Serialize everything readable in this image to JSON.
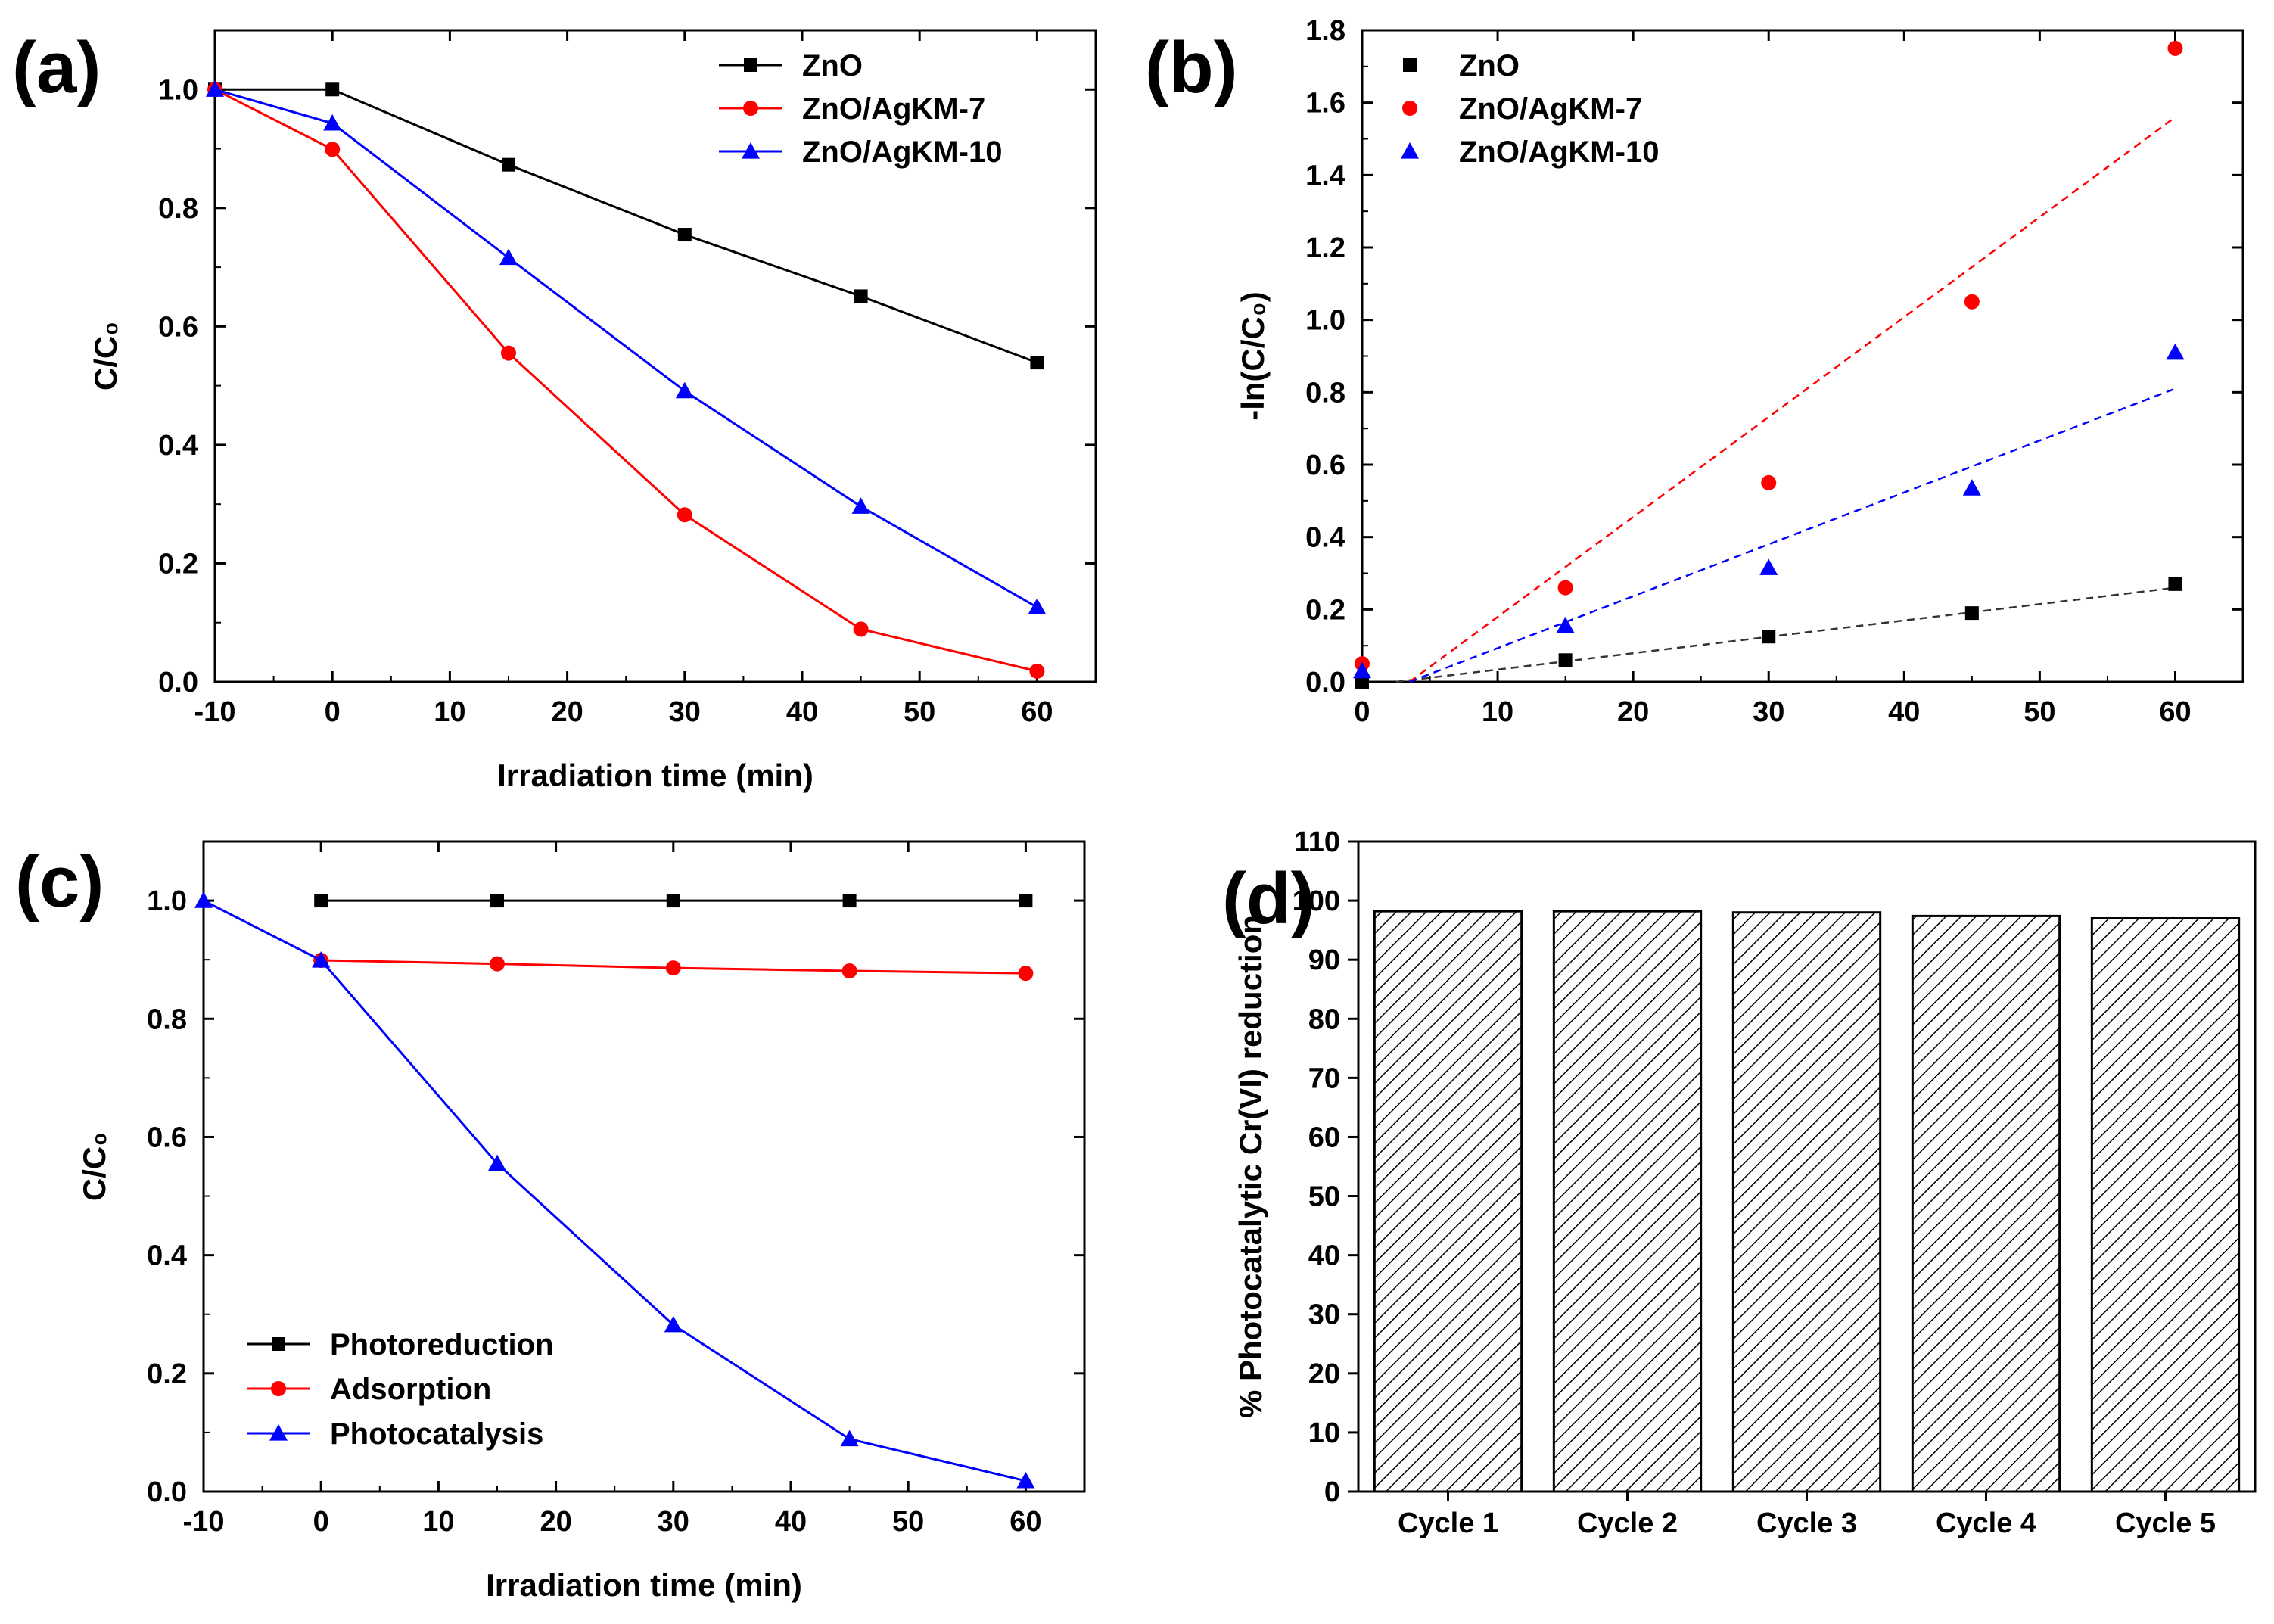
{
  "figure": {
    "colors": {
      "black": "#000000",
      "red": "#ff0000",
      "blue": "#0000ff",
      "dashed_black": "#333333"
    }
  },
  "chart_data": [
    {
      "panel": "(a)",
      "type": "line",
      "xlabel": "Irradiation time (min)",
      "ylabel": "C/C₀",
      "xlim": [
        -10,
        65
      ],
      "ylim": [
        0,
        1.1
      ],
      "xticks": [
        "-10",
        "0",
        "10",
        "20",
        "30",
        "40",
        "50",
        "60"
      ],
      "yticks": [
        "0.0",
        "0.2",
        "0.4",
        "0.6",
        "0.8",
        "1.0"
      ],
      "legend_position": "top-right",
      "series": [
        {
          "name": "ZnO",
          "marker": "square",
          "color": "#000000",
          "x": [
            -10,
            0,
            15,
            30,
            45,
            60
          ],
          "y": [
            1.0,
            1.0,
            0.873,
            0.755,
            0.651,
            0.539
          ]
        },
        {
          "name": "ZnO/AgKM-7",
          "marker": "circle",
          "color": "#ff0000",
          "x": [
            -10,
            0,
            15,
            30,
            45,
            60
          ],
          "y": [
            1.0,
            0.899,
            0.555,
            0.282,
            0.089,
            0.018
          ]
        },
        {
          "name": "ZnO/AgKM-10",
          "marker": "triangle",
          "color": "#0000ff",
          "x": [
            -10,
            0,
            15,
            30,
            45,
            60
          ],
          "y": [
            1.0,
            0.943,
            0.716,
            0.491,
            0.296,
            0.126
          ]
        }
      ]
    },
    {
      "panel": "(b)",
      "type": "scatter",
      "xlabel": "",
      "ylabel": "-ln(C/C₀)",
      "xlim": [
        0,
        65
      ],
      "ylim": [
        0,
        1.8
      ],
      "xticks": [
        "0",
        "10",
        "20",
        "30",
        "40",
        "50",
        "60"
      ],
      "yticks": [
        "0.0",
        "0.2",
        "0.4",
        "0.6",
        "0.8",
        "1.0",
        "1.2",
        "1.4",
        "1.6",
        "1.8"
      ],
      "legend_position": "top-left",
      "series": [
        {
          "name": "ZnO",
          "marker": "square",
          "color": "#000000",
          "x": [
            0,
            15,
            30,
            45,
            60
          ],
          "y": [
            0.0,
            0.06,
            0.125,
            0.19,
            0.27
          ],
          "fit": {
            "x": [
              2.5,
              60
            ],
            "y": [
              0.0,
              0.26
            ]
          }
        },
        {
          "name": "ZnO/AgKM-7",
          "marker": "circle",
          "color": "#ff0000",
          "x": [
            0,
            15,
            30,
            45,
            60
          ],
          "y": [
            0.05,
            0.26,
            0.55,
            1.05,
            1.75
          ],
          "fit": {
            "x": [
              3.5,
              60
            ],
            "y": [
              0.0,
              1.56
            ]
          }
        },
        {
          "name": "ZnO/AgKM-10",
          "marker": "triangle",
          "color": "#0000ff",
          "x": [
            0,
            15,
            30,
            45,
            60
          ],
          "y": [
            0.03,
            0.155,
            0.315,
            0.535,
            0.91
          ],
          "fit": {
            "x": [
              3.5,
              60
            ],
            "y": [
              0.0,
              0.81
            ]
          }
        }
      ]
    },
    {
      "panel": "(c)",
      "type": "line",
      "xlabel": "Irradiation time (min)",
      "ylabel": "C/C₀",
      "xlim": [
        -10,
        65
      ],
      "ylim": [
        0,
        1.1
      ],
      "xticks": [
        "-10",
        "0",
        "10",
        "20",
        "30",
        "40",
        "50",
        "60"
      ],
      "yticks": [
        "0.0",
        "0.2",
        "0.4",
        "0.6",
        "0.8",
        "1.0"
      ],
      "legend_position": "bottom-left",
      "series": [
        {
          "name": "Photoreduction",
          "marker": "square",
          "color": "#000000",
          "x": [
            0,
            15,
            30,
            45,
            60
          ],
          "y": [
            1.0,
            1.0,
            1.0,
            1.0,
            1.0
          ]
        },
        {
          "name": "Adsorption",
          "marker": "circle",
          "color": "#ff0000",
          "x": [
            0,
            15,
            30,
            45,
            60
          ],
          "y": [
            0.899,
            0.893,
            0.886,
            0.881,
            0.877
          ]
        },
        {
          "name": "Photocatalysis",
          "marker": "triangle",
          "color": "#0000ff",
          "x": [
            -10,
            0,
            15,
            30,
            45,
            60
          ],
          "y": [
            1.0,
            0.899,
            0.555,
            0.282,
            0.089,
            0.018
          ]
        }
      ]
    },
    {
      "panel": "(d)",
      "type": "bar",
      "xlabel": "",
      "ylabel": "% Photocatalytic Cr(VI) reduction",
      "ylim": [
        0,
        110
      ],
      "yticks": [
        "0",
        "10",
        "20",
        "30",
        "40",
        "50",
        "60",
        "70",
        "80",
        "90",
        "100",
        "110"
      ],
      "categories": [
        "Cycle 1",
        "Cycle 2",
        "Cycle 3",
        "Cycle 4",
        "Cycle 5"
      ],
      "values": [
        98.2,
        98.2,
        98.0,
        97.4,
        97.0
      ],
      "pattern": "diagonal hatch"
    }
  ]
}
